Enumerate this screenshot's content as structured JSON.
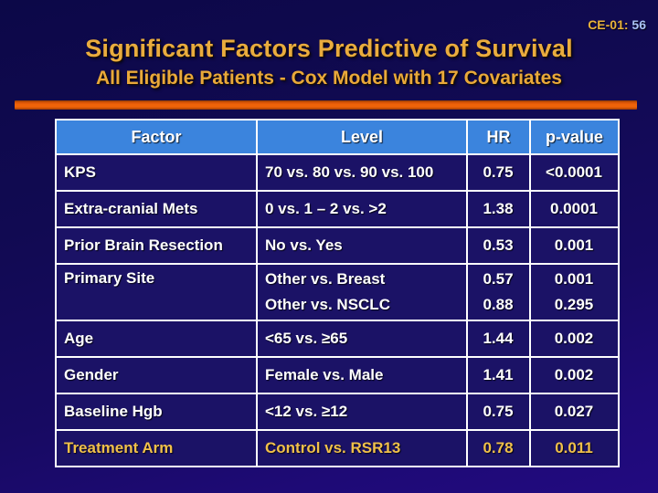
{
  "slide": {
    "slide_code": "CE-01: ",
    "slide_page": "56",
    "title": "Significant Factors Predictive of Survival",
    "subtitle": "All Eligible Patients - Cox Model with 17 Covariates"
  },
  "colors": {
    "background_top": "#0c0848",
    "background_bottom": "#220a80",
    "header_blue": "#3b84dd",
    "cell_navy": "#1b1266",
    "divider_orange": "#ef6309",
    "gold_text": "#e9ac3e",
    "highlight_gold": "#f0c04a",
    "table_border": "#ffffff"
  },
  "table": {
    "columns": [
      "Factor",
      "Level",
      "HR",
      "p-value"
    ],
    "column_keys": [
      "factor",
      "level",
      "hr",
      "p-value"
    ],
    "rows": [
      {
        "factor": "KPS",
        "level": [
          "70 vs. 80 vs. 90 vs. 100"
        ],
        "hr": [
          "0.75"
        ],
        "p": [
          "<0.0001"
        ],
        "highlight": false
      },
      {
        "factor": "Extra-cranial Mets",
        "level": [
          "0 vs. 1 – 2 vs. >2"
        ],
        "hr": [
          "1.38"
        ],
        "p": [
          "0.0001"
        ],
        "highlight": false
      },
      {
        "factor": "Prior Brain Resection",
        "level": [
          "No vs. Yes"
        ],
        "hr": [
          "0.53"
        ],
        "p": [
          "0.001"
        ],
        "highlight": false
      },
      {
        "factor": "Primary Site",
        "level": [
          "Other vs. Breast",
          "Other vs. NSCLC"
        ],
        "hr": [
          "0.57",
          "0.88"
        ],
        "p": [
          "0.001",
          "0.295"
        ],
        "highlight": false
      },
      {
        "factor": "Age",
        "level": [
          "<65 vs. ≥65"
        ],
        "hr": [
          "1.44"
        ],
        "p": [
          "0.002"
        ],
        "highlight": false
      },
      {
        "factor": "Gender",
        "level": [
          "Female vs. Male"
        ],
        "hr": [
          "1.41"
        ],
        "p": [
          "0.002"
        ],
        "highlight": false
      },
      {
        "factor": "Baseline Hgb",
        "level": [
          "<12 vs. ≥12"
        ],
        "hr": [
          "0.75"
        ],
        "p": [
          "0.027"
        ],
        "highlight": false
      },
      {
        "factor": "Treatment Arm",
        "level": [
          "Control vs. RSR13"
        ],
        "hr": [
          "0.78"
        ],
        "p": [
          "0.011"
        ],
        "highlight": true
      }
    ]
  }
}
